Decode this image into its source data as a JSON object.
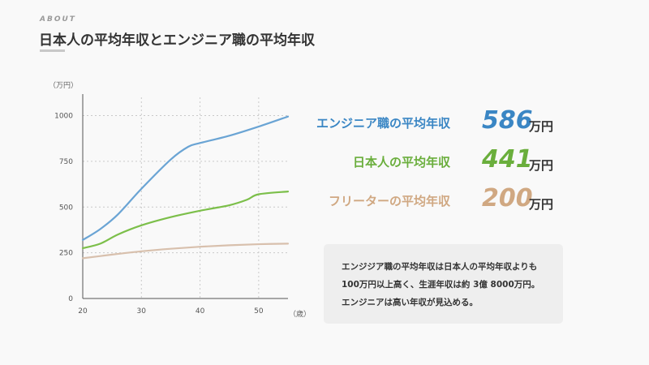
{
  "header": {
    "eyebrow": "ABOUT",
    "title": "日本人の平均年収とエンジニア職の平均年収"
  },
  "colors": {
    "engineer": "#6aa4d4",
    "japanese": "#7cbf4a",
    "freeter": "#d8c0ad",
    "engineer_text": "#3a86c4",
    "japanese_text": "#6aae3c",
    "freeter_text": "#d0a882"
  },
  "stats": [
    {
      "label": "エンジニア職の平均年収",
      "value": "586",
      "unit": "万円",
      "key": "engineer"
    },
    {
      "label": "日本人の平均年収",
      "value": "441",
      "unit": "万円",
      "key": "japanese"
    },
    {
      "label": "フリーターの平均年収",
      "value": "200",
      "unit": "万円",
      "key": "freeter"
    }
  ],
  "note": {
    "lines": [
      "エンジジア職の平均年収は日本人の平均年収よりも",
      "100万円以上高く、生涯年収は約 3億 8000万円。",
      "エンジニアは高い年収が見込める。"
    ]
  },
  "chart_data": {
    "type": "line",
    "ylabel": "（万円）",
    "xlabel": "（歳）",
    "xlim": [
      20,
      55
    ],
    "ylim": [
      0,
      1100
    ],
    "xticks": [
      20,
      30,
      40,
      50
    ],
    "yticks": [
      0,
      250,
      500,
      750,
      1000
    ],
    "grid": true,
    "series": [
      {
        "key": "engineer",
        "x": [
          20,
          23,
          26,
          30,
          35,
          38,
          40,
          45,
          50,
          55
        ],
        "y": [
          320,
          380,
          460,
          600,
          760,
          830,
          850,
          890,
          940,
          995
        ]
      },
      {
        "key": "japanese",
        "x": [
          20,
          23,
          26,
          30,
          35,
          40,
          45,
          48,
          50,
          55
        ],
        "y": [
          275,
          300,
          350,
          400,
          445,
          480,
          510,
          540,
          570,
          585
        ]
      },
      {
        "key": "freeter",
        "x": [
          20,
          25,
          30,
          35,
          40,
          45,
          50,
          55
        ],
        "y": [
          220,
          240,
          258,
          272,
          283,
          291,
          297,
          300
        ]
      }
    ]
  }
}
